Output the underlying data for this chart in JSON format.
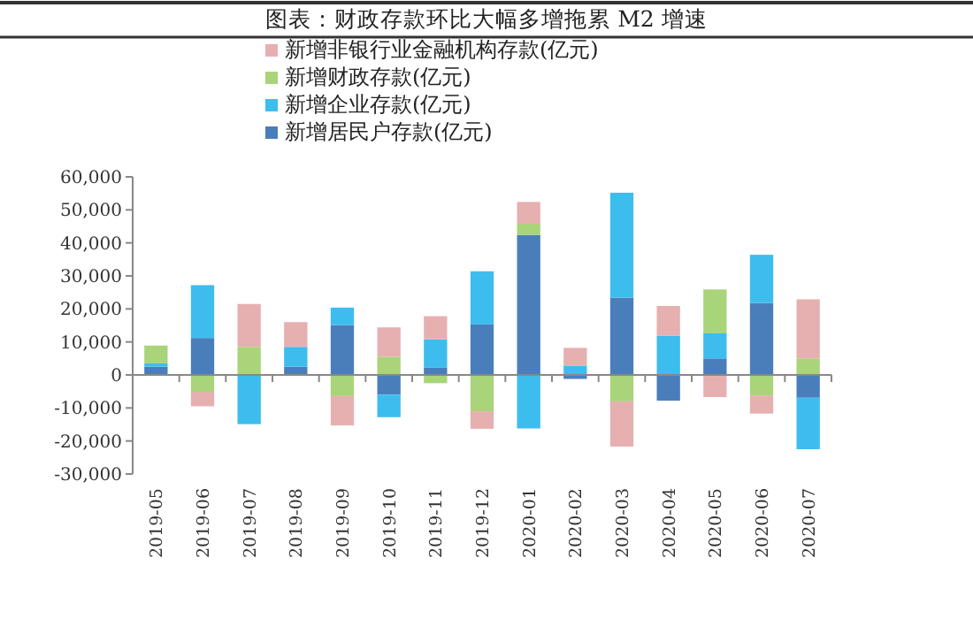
{
  "chart_data": {
    "type": "bar",
    "stacked": true,
    "title": "图表：财政存款环比大幅多增拖累 M2 增速",
    "categories": [
      "2019-05",
      "2019-06",
      "2019-07",
      "2019-08",
      "2019-09",
      "2019-10",
      "2019-11",
      "2019-12",
      "2020-01",
      "2020-02",
      "2020-03",
      "2020-04",
      "2020-05",
      "2020-06",
      "2020-07"
    ],
    "series": [
      {
        "name": "新增居民户存款(亿元)",
        "color": "#4a7ebb",
        "values": [
          2500,
          11200,
          0,
          2500,
          15100,
          -6000,
          2300,
          15300,
          42400,
          -1200,
          23400,
          -7800,
          5000,
          21800,
          -6900
        ]
      },
      {
        "name": "新增企业存款(亿元)",
        "color": "#3dbdee",
        "values": [
          1000,
          16000,
          -14900,
          6000,
          5300,
          -6800,
          8500,
          16100,
          -16200,
          2700,
          31800,
          11900,
          7600,
          14600,
          -15600
        ]
      },
      {
        "name": "新增财政存款(亿元)",
        "color": "#a9d47a",
        "values": [
          5400,
          -5100,
          8500,
          0,
          -6400,
          5500,
          -2500,
          -11000,
          3400,
          0,
          -8000,
          0,
          13300,
          -6200,
          5000
        ]
      },
      {
        "name": "新增非银行业金融机构存款(亿元)",
        "color": "#e6b0b0",
        "values": [
          0,
          -4400,
          13000,
          7500,
          -8900,
          8900,
          7000,
          -5300,
          6600,
          5500,
          -13700,
          9000,
          -6700,
          -5500,
          17900
        ]
      }
    ],
    "ylim": [
      -30000,
      60000
    ],
    "yticks": [
      {
        "value": -30000,
        "label": "-30,000"
      },
      {
        "value": -20000,
        "label": "-20,000"
      },
      {
        "value": -10000,
        "label": "-10,000"
      },
      {
        "value": 0,
        "label": "0"
      },
      {
        "value": 10000,
        "label": "10,000"
      },
      {
        "value": 20000,
        "label": "20,000"
      },
      {
        "value": 30000,
        "label": "30,000"
      },
      {
        "value": 40000,
        "label": "40,000"
      },
      {
        "value": 50000,
        "label": "50,000"
      },
      {
        "value": 60000,
        "label": "60,000"
      }
    ],
    "legend": "top left"
  }
}
